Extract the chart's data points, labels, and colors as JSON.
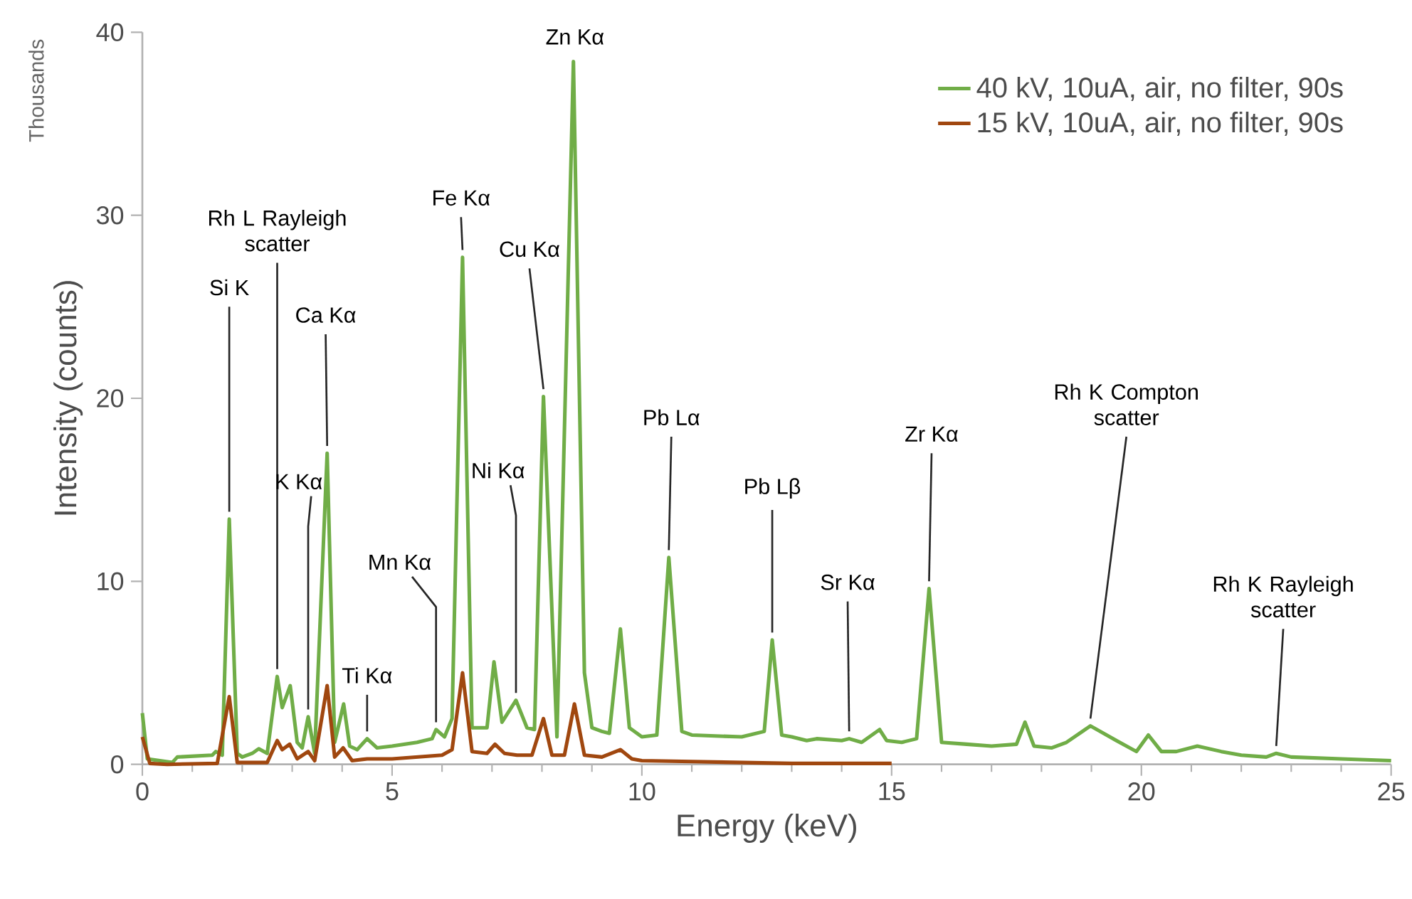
{
  "chart_data": {
    "type": "line",
    "xlabel": "Energy (keV)",
    "ylabel": "Intensity (counts)",
    "xlim": [
      0,
      25
    ],
    "ylim": [
      0,
      40
    ],
    "xticks": [
      0,
      5,
      10,
      15,
      20,
      25
    ],
    "yticks": [
      0,
      10,
      20,
      30,
      40
    ],
    "legend": "top right",
    "series": [
      {
        "name": "40 kV, 10uA, air, no filter, 90s",
        "color": "#70ad47",
        "x": [
          0,
          0.1,
          0.6,
          0.7,
          1.4,
          1.47,
          1.6,
          1.74,
          1.9,
          2.0,
          2.2,
          2.33,
          2.5,
          2.7,
          2.8,
          2.96,
          3.1,
          3.2,
          3.32,
          3.45,
          3.7,
          3.85,
          4.03,
          4.15,
          4.3,
          4.5,
          4.7,
          5.0,
          5.5,
          5.8,
          5.88,
          6.05,
          6.2,
          6.41,
          6.6,
          6.9,
          7.04,
          7.2,
          7.48,
          7.7,
          7.85,
          8.03,
          8.3,
          8.63,
          8.85,
          9.0,
          9.2,
          9.35,
          9.57,
          9.75,
          10.0,
          10.3,
          10.54,
          10.8,
          11.0,
          12.0,
          12.45,
          12.61,
          12.8,
          13.0,
          13.3,
          13.5,
          14.0,
          14.15,
          14.4,
          14.76,
          14.9,
          15.2,
          15.5,
          15.75,
          16.0,
          16.5,
          17.0,
          17.5,
          17.67,
          17.85,
          18.2,
          18.5,
          18.98,
          19.5,
          19.9,
          20.14,
          20.4,
          20.7,
          21.12,
          21.6,
          22.0,
          22.5,
          22.7,
          23.0,
          24.0,
          25.0
        ],
        "values": [
          2.8,
          0.3,
          0.1,
          0.4,
          0.5,
          0.7,
          0.5,
          13.4,
          0.6,
          0.4,
          0.6,
          0.85,
          0.6,
          4.8,
          3.1,
          4.3,
          1.2,
          0.9,
          2.6,
          0.6,
          17.0,
          1.2,
          3.3,
          1.0,
          0.8,
          1.4,
          0.9,
          1.0,
          1.2,
          1.4,
          1.9,
          1.5,
          2.5,
          27.7,
          2.0,
          2.0,
          5.6,
          2.3,
          3.5,
          2.0,
          1.9,
          20.1,
          1.5,
          38.4,
          5.0,
          2.0,
          1.8,
          1.7,
          7.4,
          2.0,
          1.5,
          1.6,
          11.3,
          1.8,
          1.6,
          1.5,
          1.8,
          6.8,
          1.6,
          1.5,
          1.3,
          1.4,
          1.3,
          1.4,
          1.2,
          1.9,
          1.3,
          1.2,
          1.4,
          9.6,
          1.2,
          1.1,
          1.0,
          1.1,
          2.3,
          1.0,
          0.9,
          1.2,
          2.1,
          1.3,
          0.7,
          1.6,
          0.7,
          0.7,
          1.0,
          0.7,
          0.5,
          0.4,
          0.6,
          0.4,
          0.3,
          0.2
        ]
      },
      {
        "name": "15 kV, 10uA, air, no filter, 90s",
        "color": "#a0470f",
        "x": [
          0,
          0.15,
          0.5,
          1.5,
          1.74,
          1.9,
          2.5,
          2.7,
          2.8,
          2.95,
          3.1,
          3.32,
          3.45,
          3.7,
          3.85,
          4.02,
          4.2,
          4.5,
          5.0,
          6.0,
          6.2,
          6.41,
          6.6,
          6.9,
          7.06,
          7.25,
          7.5,
          7.8,
          8.03,
          8.2,
          8.45,
          8.65,
          8.85,
          9.2,
          9.57,
          9.8,
          10.0,
          11.0,
          12.0,
          13.0,
          14.0,
          15.0
        ],
        "values": [
          1.5,
          0.05,
          0,
          0.05,
          3.7,
          0.1,
          0.1,
          1.3,
          0.8,
          1.1,
          0.3,
          0.7,
          0.2,
          4.3,
          0.4,
          0.9,
          0.2,
          0.3,
          0.3,
          0.5,
          0.8,
          5.0,
          0.7,
          0.6,
          1.1,
          0.6,
          0.5,
          0.5,
          2.5,
          0.5,
          0.5,
          3.3,
          0.5,
          0.4,
          0.8,
          0.3,
          0.2,
          0.15,
          0.1,
          0.05,
          0.05,
          0.05
        ]
      }
    ],
    "annotations": [
      "Thousands",
      {
        "text": "Si K",
        "x": 1.74,
        "y": 13.4
      },
      {
        "text": "Rh L Rayleigh scatter",
        "x": 2.7,
        "y": 4.8
      },
      {
        "text": "K Kα",
        "x": 3.32,
        "y": 2.6
      },
      {
        "text": "Ca Kα",
        "x": 3.7,
        "y": 17.0
      },
      {
        "text": "Ti Kα",
        "x": 4.5,
        "y": 1.4
      },
      {
        "text": "Mn Kα",
        "x": 5.88,
        "y": 1.9
      },
      {
        "text": "Fe Kα",
        "x": 6.41,
        "y": 27.7
      },
      {
        "text": "Ni Kα",
        "x": 7.48,
        "y": 3.5
      },
      {
        "text": "Cu Kα",
        "x": 8.03,
        "y": 20.1
      },
      {
        "text": "Zn Kα",
        "x": 8.63,
        "y": 38.4
      },
      {
        "text": "Pb Lα",
        "x": 10.54,
        "y": 11.3
      },
      {
        "text": "Pb Lβ",
        "x": 12.61,
        "y": 6.8
      },
      {
        "text": "Sr Kα",
        "x": 14.15,
        "y": 1.4
      },
      {
        "text": "Zr Kα",
        "x": 15.75,
        "y": 9.6
      },
      {
        "text": "Rh K Compton scatter",
        "x": 18.98,
        "y": 2.1
      },
      {
        "text": "Rh K Rayleigh scatter",
        "x": 22.7,
        "y": 0.6
      }
    ]
  }
}
